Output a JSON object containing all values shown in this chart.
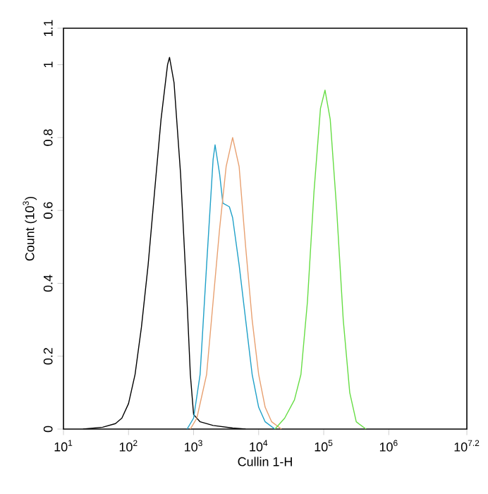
{
  "chart_data": {
    "type": "line",
    "xlabel": "Cullin 1-H",
    "ylabel": "Count (10$^{3}$)",
    "log": "x",
    "marker": "none",
    "line_style": "solid",
    "xlim": [
      10,
      15848931.9
    ],
    "xticks": [
      {
        "value": 10,
        "label": "10$^{1}$"
      },
      {
        "value": 100,
        "label": "10$^{2}$"
      },
      {
        "value": 1000,
        "label": "10$^{3}$"
      },
      {
        "value": 10000,
        "label": "10$^{4}$"
      },
      {
        "value": 100000,
        "label": "10$^{5}$"
      },
      {
        "value": 1000000,
        "label": "10$^{6}$"
      },
      {
        "value": 15848931.9,
        "label": "10$^{7.2}$"
      }
    ],
    "ylim": [
      0,
      1.1
    ],
    "yticks": [
      0,
      0.2,
      0.4,
      0.6,
      0.8,
      1,
      1.1
    ],
    "series": [
      {
        "color": "#000000",
        "x": [
          20,
          40,
          63,
          79,
          100,
          126,
          158,
          200,
          251,
          316,
          398,
          427,
          501,
          631,
          794,
          891,
          1000,
          1259,
          1995,
          3981,
          6310
        ],
        "values": [
          0,
          0.005,
          0.015,
          0.03,
          0.07,
          0.15,
          0.28,
          0.45,
          0.65,
          0.85,
          1.0,
          1.02,
          0.95,
          0.7,
          0.35,
          0.15,
          0.04,
          0.02,
          0.01,
          0.003,
          0
        ]
      },
      {
        "color": "#1fa0c8",
        "x": [
          794,
          1000,
          1259,
          1585,
          1995,
          2138,
          2512,
          2818,
          3548,
          3981,
          5012,
          6310,
          7943,
          10000,
          12589,
          17783
        ],
        "values": [
          0,
          0.03,
          0.15,
          0.45,
          0.74,
          0.78,
          0.7,
          0.62,
          0.61,
          0.58,
          0.45,
          0.3,
          0.15,
          0.06,
          0.02,
          0
        ]
      },
      {
        "color": "#e8a070",
        "x": [
          891,
          1122,
          1585,
          1995,
          2512,
          3162,
          3981,
          5012,
          6310,
          7943,
          10000,
          12589,
          15849,
          22387
        ],
        "values": [
          0,
          0.03,
          0.15,
          0.35,
          0.55,
          0.72,
          0.8,
          0.72,
          0.5,
          0.3,
          0.15,
          0.06,
          0.02,
          0
        ]
      },
      {
        "color": "#66dd44",
        "x": [
          17783,
          25119,
          35481,
          44668,
          56234,
          70795,
          89125,
          104713,
          125893,
          158489,
          199526,
          251189,
          316228,
          446684
        ],
        "values": [
          0,
          0.03,
          0.08,
          0.15,
          0.35,
          0.65,
          0.88,
          0.93,
          0.85,
          0.6,
          0.3,
          0.1,
          0.02,
          0
        ]
      }
    ]
  }
}
